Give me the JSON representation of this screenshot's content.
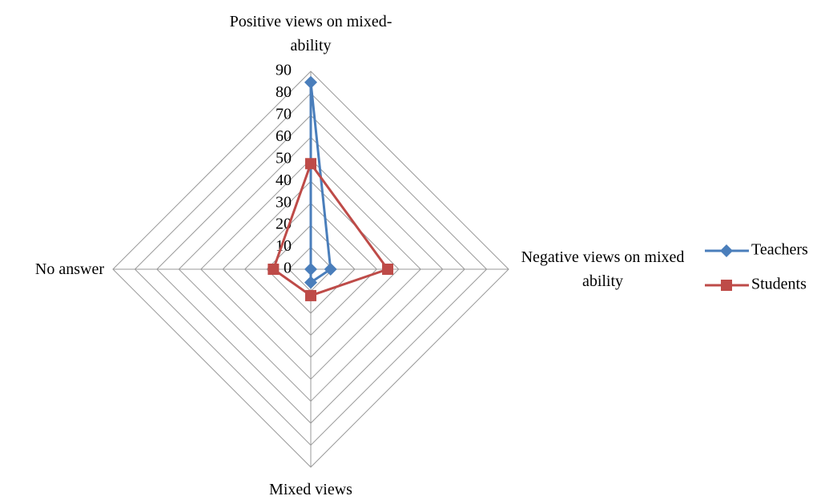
{
  "chart_data": {
    "type": "radar",
    "categories": [
      "Positive views on mixed-ability",
      "Negative views on mixed ability",
      "Mixed views",
      "No answer"
    ],
    "series": [
      {
        "name": "Teachers",
        "color": "#4a7ebb",
        "marker": "diamond",
        "values": [
          85,
          9,
          6,
          0
        ]
      },
      {
        "name": "Students",
        "color": "#be4b48",
        "marker": "square",
        "values": [
          48,
          35,
          12,
          17
        ]
      }
    ],
    "ylim": [
      0,
      90
    ],
    "yticks": [
      0,
      10,
      20,
      30,
      40,
      50,
      60,
      70,
      80,
      90
    ],
    "grid": true,
    "legend": "right"
  }
}
